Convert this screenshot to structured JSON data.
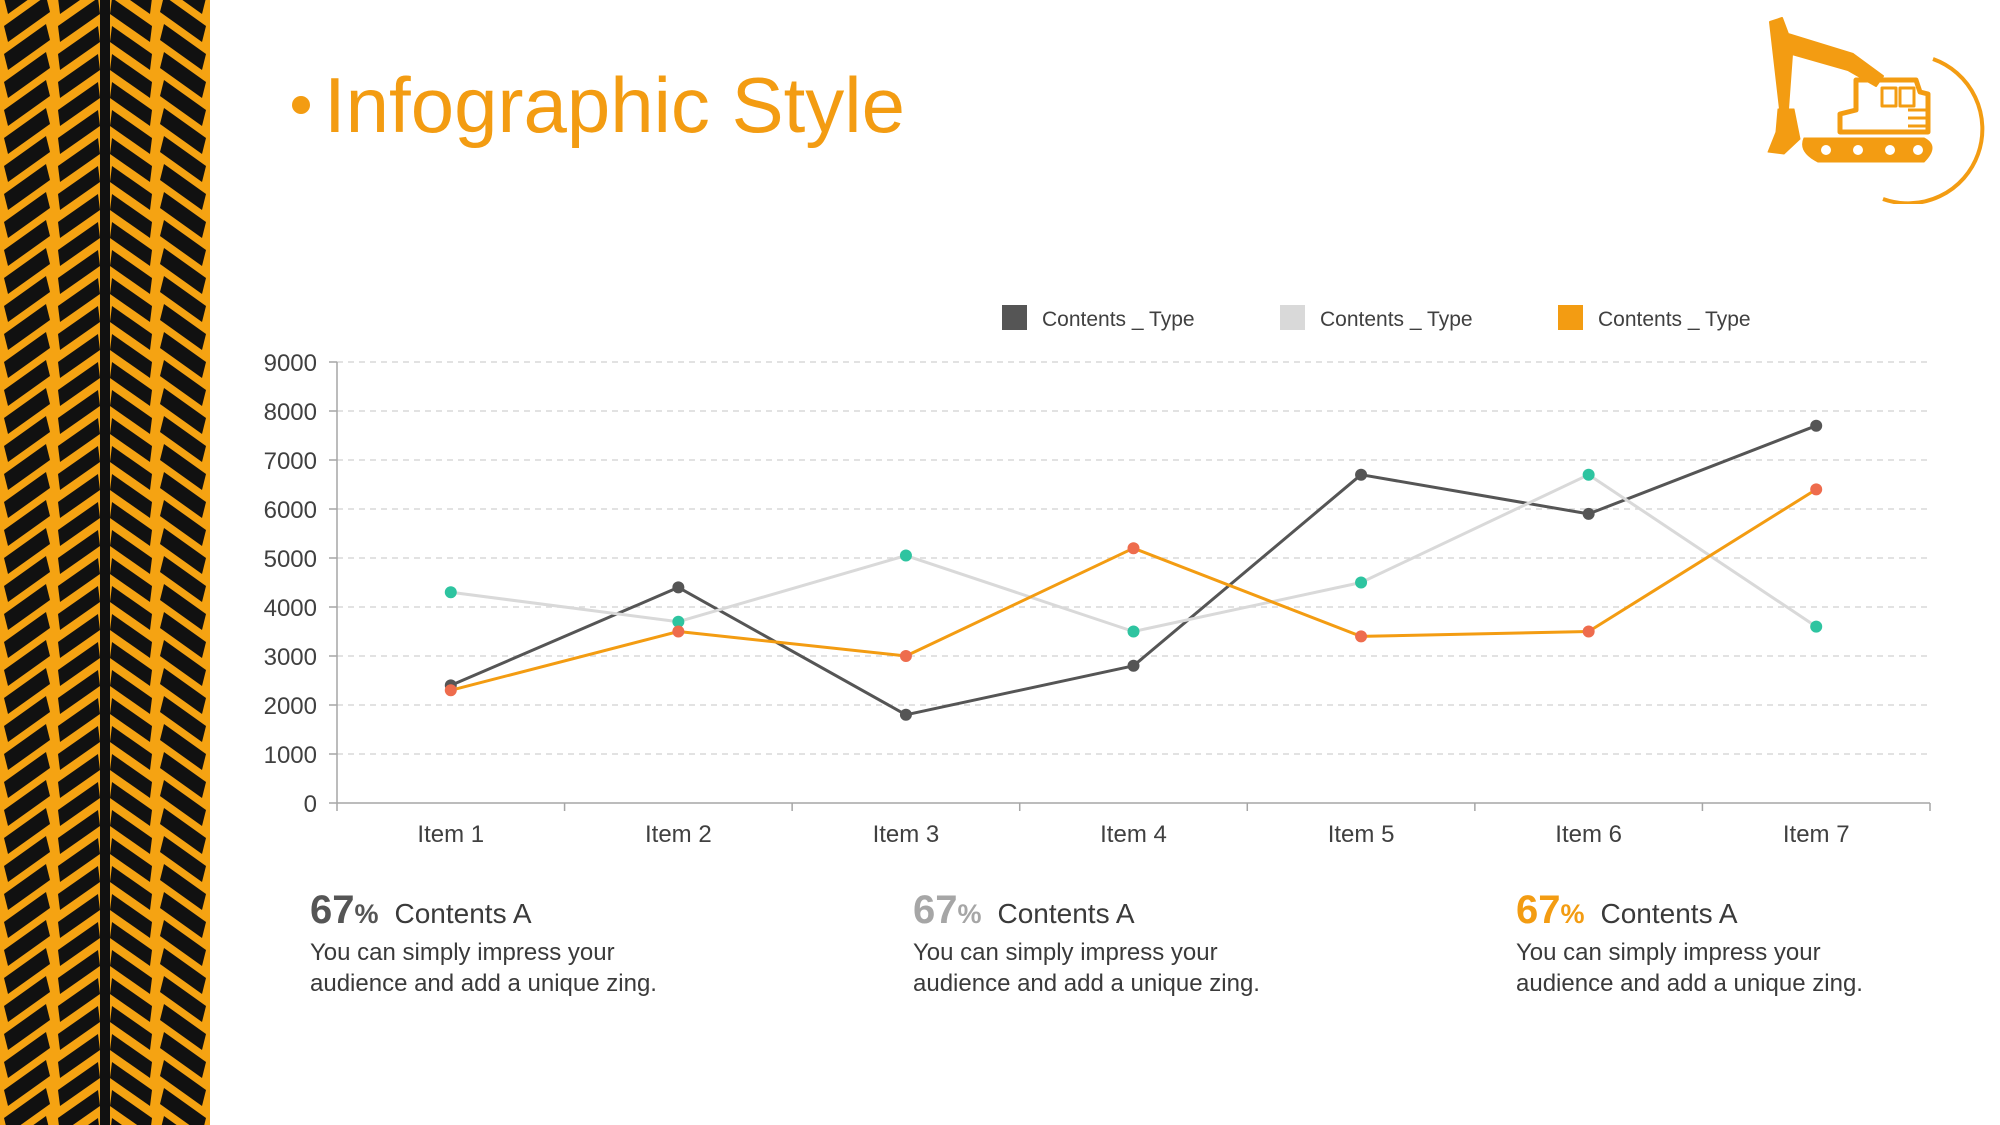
{
  "slide": {
    "title": "Infographic Style",
    "accent_color": "#F39C12"
  },
  "decor": {
    "left_band": "tire-tread-pattern",
    "logo": "excavator-icon"
  },
  "chart_data": {
    "type": "line",
    "categories": [
      "Item 1",
      "Item 2",
      "Item 3",
      "Item 4",
      "Item 5",
      "Item 6",
      "Item 7"
    ],
    "ylim": [
      0,
      9000
    ],
    "yticks": [
      0,
      1000,
      2000,
      3000,
      4000,
      5000,
      6000,
      7000,
      8000,
      9000
    ],
    "grid": true,
    "legend_position": "top",
    "series": [
      {
        "name": "Contents _ Type",
        "line_color": "#555555",
        "marker_color": "#555555",
        "values": [
          2400,
          4400,
          1800,
          2800,
          6700,
          5900,
          7700
        ]
      },
      {
        "name": "Contents _ Type",
        "line_color": "#D9D9D9",
        "marker_color": "#2EC4A0",
        "values": [
          4300,
          3700,
          5050,
          3500,
          4500,
          6700,
          3600
        ]
      },
      {
        "name": "Contents _ Type",
        "line_color": "#F39C12",
        "marker_color": "#EE6C4D",
        "values": [
          2300,
          3500,
          3000,
          5200,
          3400,
          3500,
          6400
        ]
      }
    ]
  },
  "stats": [
    {
      "value": "67",
      "unit": "%",
      "label": "Contents A",
      "desc1": "You can simply impress your",
      "desc2": "audience and add a unique zing.",
      "color": "#555555"
    },
    {
      "value": "67",
      "unit": "%",
      "label": "Contents A",
      "desc1": "You can simply impress your",
      "desc2": "audience and add a unique zing.",
      "color": "#A6A6A6"
    },
    {
      "value": "67",
      "unit": "%",
      "label": "Contents A",
      "desc1": "You can simply impress your",
      "desc2": "audience and add a unique zing.",
      "color": "#F39C12"
    }
  ]
}
